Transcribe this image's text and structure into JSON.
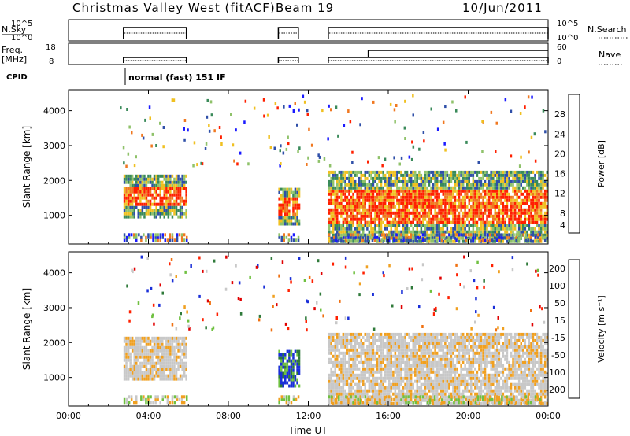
{
  "title": {
    "radar": "Christmas Valley West (fitACF)",
    "beam": "Beam 19",
    "date": "10/Jun/2011"
  },
  "header_panels": {
    "nsky_label": "N.Sky",
    "nsky_ticks": [
      "10^5",
      "10^0"
    ],
    "nsearch_label": "N.Search",
    "nsearch_ticks": [
      "10^5",
      "10^0"
    ],
    "freq_label_1": "Freq.",
    "freq_label_2": "[MHz]",
    "freq_ticks": [
      "18",
      "8"
    ],
    "nave_label": "Nave",
    "nave_ticks": [
      "60",
      "0"
    ],
    "cpid_label": "CPID",
    "cpid_text": "normal (fast) 151 IF"
  },
  "chart_data": [
    {
      "type": "heatmap",
      "name": "power-panel",
      "ylabel": "Slant Range [km]",
      "xlabel": "",
      "x_ticks": [
        "00:00",
        "04:00",
        "08:00",
        "12:00",
        "16:00",
        "20:00",
        "00:00"
      ],
      "y_ticks": [
        1000,
        2000,
        3000,
        4000
      ],
      "ylim": [
        180,
        4600
      ],
      "xlim_hours": [
        0,
        24
      ],
      "colorbar": {
        "label": "Power [dB]",
        "ticks": [
          "4",
          "8",
          "12",
          "16",
          "20",
          "24",
          "28"
        ],
        "colors": [
          "#1a1aff",
          "#2f4fa8",
          "#3a8a5a",
          "#8fc26a",
          "#f0c020",
          "#f07820",
          "#ff2000"
        ]
      },
      "data_blocks": [
        {
          "start_hour": 2.75,
          "end_hour": 5.9,
          "range_km": [
            1000,
            2200
          ],
          "level": "high"
        },
        {
          "start_hour": 10.5,
          "end_hour": 11.5,
          "range_km": [
            800,
            1800
          ],
          "level": "medium"
        },
        {
          "start_hour": 13.0,
          "end_hour": 24.0,
          "range_km": [
            300,
            2300
          ],
          "level": "mixed"
        }
      ]
    },
    {
      "type": "heatmap",
      "name": "velocity-panel",
      "ylabel": "Slant Range [km]",
      "xlabel": "Time UT",
      "x_ticks": [
        "00:00",
        "04:00",
        "08:00",
        "12:00",
        "16:00",
        "20:00",
        "00:00"
      ],
      "y_ticks": [
        1000,
        2000,
        3000,
        4000
      ],
      "ylim": [
        180,
        4600
      ],
      "xlim_hours": [
        0,
        24
      ],
      "colorbar": {
        "label": "Velocity [m s⁻¹]",
        "ticks": [
          "200",
          "100",
          "50",
          "15",
          "-15",
          "-50",
          "-100",
          "-200"
        ],
        "colors": [
          "#1a2fd8",
          "#2f7a3a",
          "#6fc040",
          "#c8c8c8",
          "#f0a020",
          "#f07010",
          "#ff2000",
          "#e00000"
        ]
      },
      "data_blocks": [
        {
          "start_hour": 2.75,
          "end_hour": 5.9,
          "range_km": [
            1000,
            2200
          ],
          "level": "slow"
        },
        {
          "start_hour": 10.5,
          "end_hour": 11.5,
          "range_km": [
            800,
            1800
          ],
          "level": "positive"
        },
        {
          "start_hour": 13.0,
          "end_hour": 24.0,
          "range_km": [
            300,
            2300
          ],
          "level": "ground"
        }
      ]
    }
  ]
}
